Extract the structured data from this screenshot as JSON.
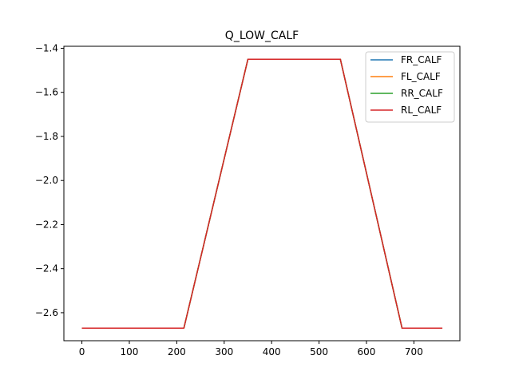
{
  "chart_data": {
    "type": "line",
    "title": "Q_LOW_CALF",
    "xlabel": "",
    "ylabel": "",
    "xlim": [
      -38,
      797
    ],
    "ylim": [
      -2.727,
      -1.391
    ],
    "xticks": [
      0,
      100,
      200,
      300,
      400,
      500,
      600,
      700
    ],
    "yticks": [
      -2.6,
      -2.4,
      -2.2,
      -2.0,
      -1.8,
      -1.6,
      -1.4
    ],
    "ytick_labels": [
      "−2.6",
      "−2.4",
      "−2.2",
      "−2.0",
      "−1.8",
      "−1.6",
      "−1.4"
    ],
    "grid": false,
    "legend_position": "top-right",
    "x": [
      0,
      215,
      350,
      545,
      675,
      760
    ],
    "series": [
      {
        "name": "FR_CALF",
        "color": "#1f77b4",
        "values": [
          -2.67,
          -2.67,
          -1.45,
          -1.45,
          -2.67,
          -2.67
        ]
      },
      {
        "name": "FL_CALF",
        "color": "#ff7f0e",
        "values": [
          -2.67,
          -2.67,
          -1.45,
          -1.45,
          -2.67,
          -2.67
        ]
      },
      {
        "name": "RR_CALF",
        "color": "#2ca02c",
        "values": [
          -2.67,
          -2.67,
          -1.45,
          -1.45,
          -2.67,
          -2.67
        ]
      },
      {
        "name": "RL_CALF",
        "color": "#d62728",
        "values": [
          -2.67,
          -2.67,
          -1.45,
          -1.45,
          -2.67,
          -2.67
        ]
      }
    ]
  }
}
